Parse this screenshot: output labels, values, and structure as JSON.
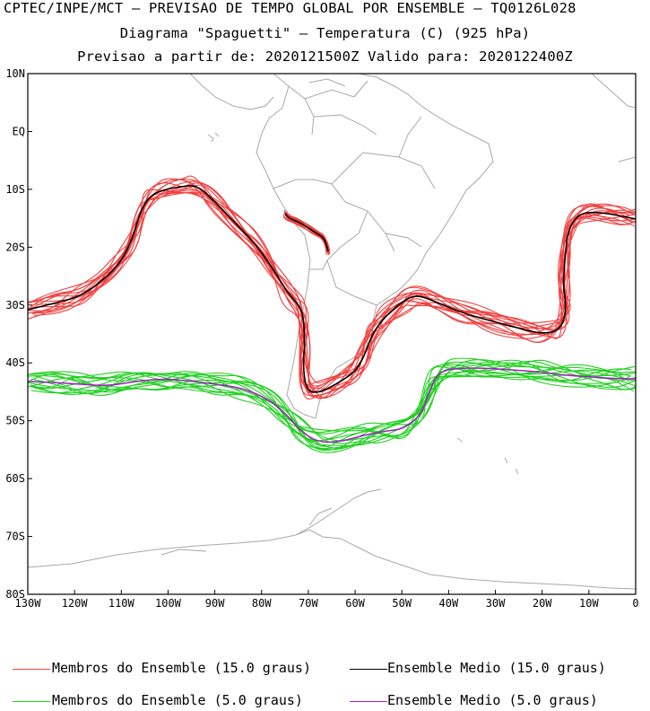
{
  "header": {
    "line1": "CPTEC/INPE/MCT – PREVISAO DE TEMPO GLOBAL POR ENSEMBLE – TQ0126L028",
    "line2": "Diagrama \"Spaguetti\" – Temperatura (C) (925 hPa)",
    "line3": "Previsao a partir de: 2020121500Z  Valido para: 2020122400Z"
  },
  "map": {
    "lat_labels": [
      "10N",
      "EQ",
      "10S",
      "20S",
      "30S",
      "40S",
      "50S",
      "60S",
      "70S",
      "80S"
    ],
    "lon_labels": [
      "130W",
      "120W",
      "110W",
      "100W",
      "90W",
      "80W",
      "70W",
      "60W",
      "50W",
      "40W",
      "30W",
      "20W",
      "10W",
      "0"
    ],
    "lat_range": [
      10,
      -80
    ],
    "lon_range": [
      -130,
      0
    ]
  },
  "legend": {
    "members_15": "Membros do Ensemble (15.0 graus)",
    "mean_15": "Ensemble Medio (15.0 graus)",
    "members_5": "Membros do Ensemble (5.0 graus)",
    "mean_5": "Ensemble Medio (5.0 graus)"
  },
  "colors": {
    "members_15": "#f04040",
    "mean_15": "#000000",
    "members_5": "#20d020",
    "mean_5": "#a020c0",
    "coast": "#a8a8a8"
  }
}
